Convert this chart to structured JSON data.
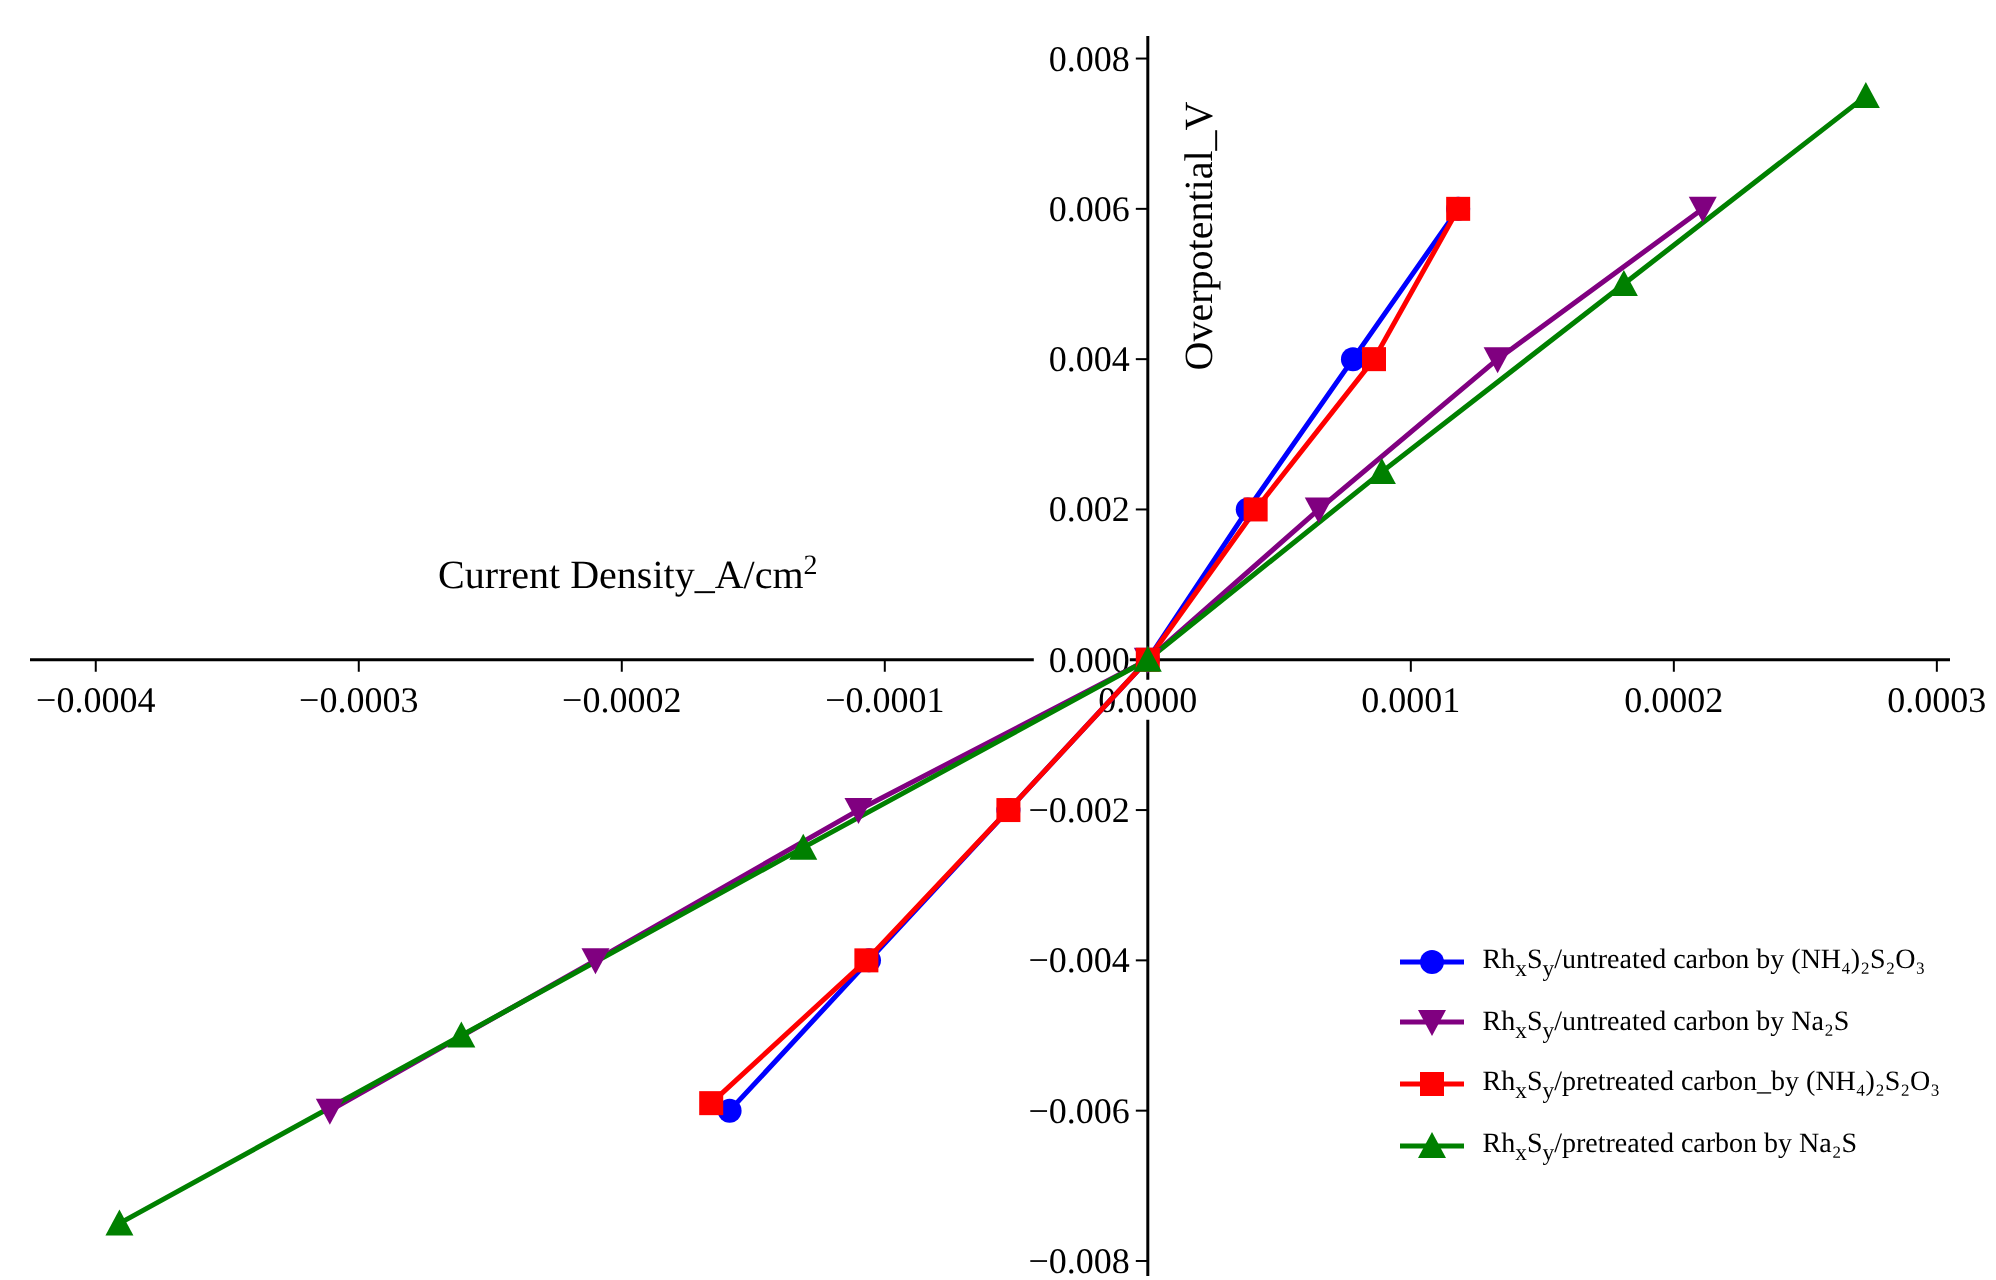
{
  "chart_data": {
    "type": "line",
    "xlabel": "Current Density_A/cm$^{2}$",
    "ylabel": "Overpotential_V",
    "xlim": [
      -0.000425,
      0.000305
    ],
    "ylim": [
      -0.0082,
      0.0083
    ],
    "xticks": [
      {
        "value": -0.0004,
        "label": "−0.0004"
      },
      {
        "value": -0.0003,
        "label": "−0.0003"
      },
      {
        "value": -0.0002,
        "label": "−0.0002"
      },
      {
        "value": -0.0001,
        "label": "−0.0001"
      },
      {
        "value": 0,
        "label": "0.0000"
      },
      {
        "value": 0.0001,
        "label": "0.0001"
      },
      {
        "value": 0.0002,
        "label": "0.0002"
      },
      {
        "value": 0.0003,
        "label": "0.0003"
      }
    ],
    "yticks": [
      {
        "value": -0.008,
        "label": "−0.008"
      },
      {
        "value": -0.006,
        "label": "−0.006"
      },
      {
        "value": -0.004,
        "label": "−0.004"
      },
      {
        "value": -0.002,
        "label": "−0.002"
      },
      {
        "value": 0,
        "label": "0.000"
      },
      {
        "value": 0.002,
        "label": "0.002"
      },
      {
        "value": 0.004,
        "label": "0.004"
      },
      {
        "value": 0.006,
        "label": "0.006"
      },
      {
        "value": 0.008,
        "label": "0.008"
      }
    ],
    "grid": false,
    "legend": "bottom right",
    "line_style": "solid",
    "series": [
      {
        "name": "Rh$_{x}$S$_{y}$/untreated carbon by (NH₄)₂S₂O₃",
        "color": "#0000ff",
        "marker": "circle",
        "x": [
          -0.000159,
          -0.000106,
          -5.3e-05,
          0,
          3.8e-05,
          7.8e-05,
          0.000118
        ],
        "values": [
          -0.006,
          -0.004,
          -0.002,
          0,
          0.002,
          0.004,
          0.006
        ]
      },
      {
        "name": "Rh$_{x}$S$_{y}$/untreated carbon by Na₂S",
        "color": "#800080",
        "marker": "triangle-down",
        "x": [
          -0.000311,
          -0.00021,
          -0.00011,
          0,
          6.5e-05,
          0.000133,
          0.000211
        ],
        "values": [
          -0.006,
          -0.004,
          -0.002,
          0,
          0.002,
          0.004,
          0.006
        ]
      },
      {
        "name": "Rh$_{x}$S$_{y}$/pretreated carbon_by (NH₄)₂S₂O₃",
        "color": "#ff0000",
        "marker": "square",
        "x": [
          -0.000166,
          -0.000107,
          -5.3e-05,
          0,
          4.1e-05,
          8.6e-05,
          0.000118
        ],
        "values": [
          -0.0059,
          -0.004,
          -0.002,
          0,
          0.002,
          0.004,
          0.006
        ]
      },
      {
        "name": "Rh$_{x}$S$_{y}$/pretreated carbon by Na₂S",
        "color": "#008000",
        "marker": "triangle",
        "x": [
          -0.000391,
          -0.000261,
          -0.000131,
          0,
          8.9e-05,
          0.000181,
          0.000273
        ],
        "values": [
          -0.0075,
          -0.005,
          -0.0025,
          0,
          0.0025,
          0.005,
          0.0075
        ]
      }
    ]
  }
}
